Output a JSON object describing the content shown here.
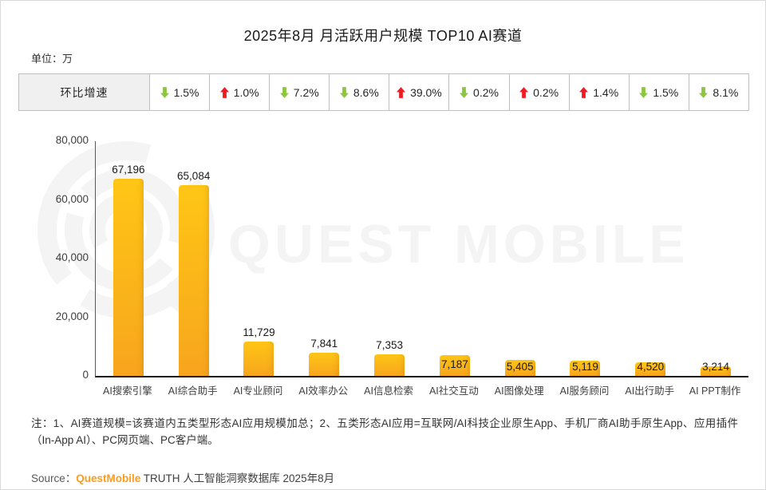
{
  "page": {
    "title": "2025年8月 月活跃用户规模 TOP10 AI赛道",
    "unit_label": "单位：万",
    "watermark_text": "QUEST MOBILE",
    "note": "注：1、AI赛道规模=该赛道内五类型形态AI应用规模加总；2、五类形态AI应用=互联网/AI科技企业原生App、手机厂商AI助手原生App、应用插件（In-App AI）、PC网页端、PC客户端。",
    "source": {
      "prefix": "Source：",
      "brand": "QuestMobile",
      "suffix": " TRUTH 人工智能洞察数据库 2025年8月"
    }
  },
  "growth_table": {
    "header": "环比增速",
    "cells": [
      {
        "direction": "down",
        "value": "1.5%"
      },
      {
        "direction": "up",
        "value": "1.0%"
      },
      {
        "direction": "down",
        "value": "7.2%"
      },
      {
        "direction": "down",
        "value": "8.6%"
      },
      {
        "direction": "up",
        "value": "39.0%"
      },
      {
        "direction": "down",
        "value": "0.2%"
      },
      {
        "direction": "up",
        "value": "0.2%"
      },
      {
        "direction": "up",
        "value": "1.4%"
      },
      {
        "direction": "down",
        "value": "1.5%"
      },
      {
        "direction": "down",
        "value": "8.1%"
      }
    ]
  },
  "chart_data": {
    "type": "bar",
    "title": "2025年8月 月活跃用户规模 TOP10 AI赛道",
    "unit": "万",
    "categories": [
      "AI搜索引擎",
      "AI综合助手",
      "AI专业顾问",
      "AI效率办公",
      "AI信息检索",
      "AI社交互动",
      "AI图像处理",
      "AI服务顾问",
      "AI出行助手",
      "AI PPT制作"
    ],
    "values": [
      67196,
      65084,
      11729,
      7841,
      7353,
      7187,
      5405,
      5119,
      4520,
      3214
    ],
    "value_labels": [
      "67,196",
      "65,084",
      "11,729",
      "7,841",
      "7,353",
      "7,187",
      "5,405",
      "5,119",
      "4,520",
      "3,214"
    ],
    "label_positions": [
      "above",
      "above",
      "above",
      "above",
      "above",
      "inside",
      "inside",
      "inside",
      "inside",
      "inside"
    ],
    "mom_growth": [
      "-1.5%",
      "+1.0%",
      "-7.2%",
      "-8.6%",
      "+39.0%",
      "-0.2%",
      "+0.2%",
      "+1.4%",
      "-1.5%",
      "-8.1%"
    ],
    "xlabel": "",
    "ylabel": "",
    "ylim": [
      0,
      80000
    ],
    "yticks": [
      0,
      20000,
      40000,
      60000,
      80000
    ],
    "ytick_labels": [
      "0",
      "20,000",
      "40,000",
      "60,000",
      "80,000"
    ],
    "grid": false,
    "legend": false
  },
  "colors": {
    "bar_top": "#FFC616",
    "bar_bottom": "#F7A51D",
    "up_arrow": "#EC1C24",
    "down_arrow": "#8CC63F",
    "brand_orange": "#FF9C1A",
    "watermark": "#F4F4F4",
    "table_border": "#BFBFBF",
    "table_header_bg": "#F0F0F0"
  }
}
